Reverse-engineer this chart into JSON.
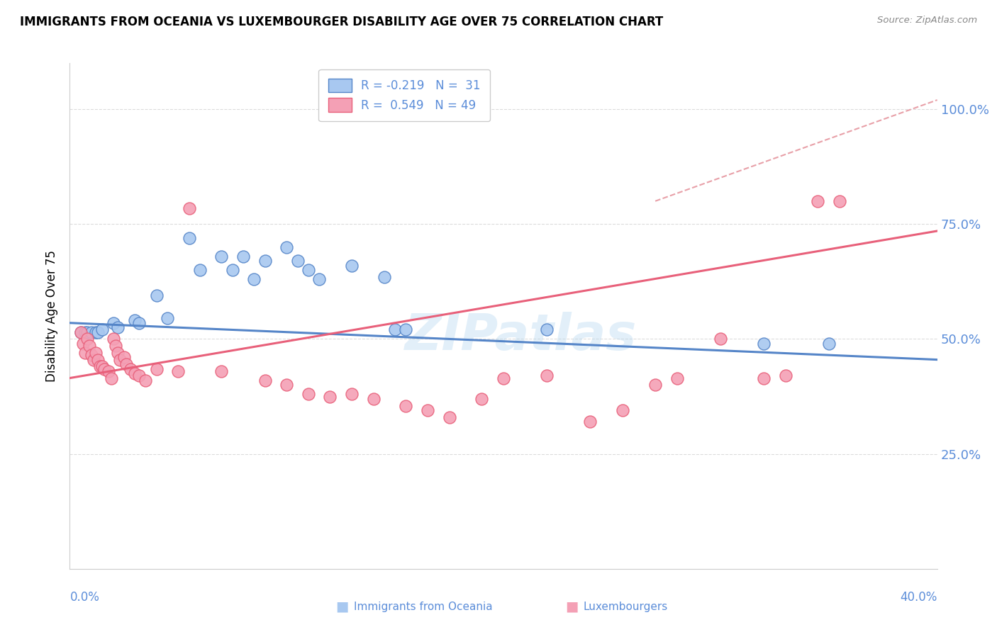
{
  "title": "IMMIGRANTS FROM OCEANIA VS LUXEMBOURGER DISABILITY AGE OVER 75 CORRELATION CHART",
  "source": "Source: ZipAtlas.com",
  "ylabel": "Disability Age Over 75",
  "xlim": [
    0.0,
    0.4
  ],
  "ylim": [
    0.0,
    1.1
  ],
  "legend_blue_r": "-0.219",
  "legend_blue_n": "31",
  "legend_pink_r": "0.549",
  "legend_pink_n": "49",
  "watermark": "ZIPatlas",
  "blue_color": "#A8C8F0",
  "pink_color": "#F4A0B5",
  "blue_line_color": "#5585C8",
  "pink_line_color": "#E8607A",
  "dashed_line_color": "#E8A0A8",
  "right_axis_color": "#5B8DD9",
  "blue_points": [
    [
      0.005,
      0.515
    ],
    [
      0.007,
      0.515
    ],
    [
      0.008,
      0.515
    ],
    [
      0.01,
      0.515
    ],
    [
      0.012,
      0.515
    ],
    [
      0.013,
      0.515
    ],
    [
      0.015,
      0.52
    ],
    [
      0.02,
      0.535
    ],
    [
      0.022,
      0.525
    ],
    [
      0.03,
      0.54
    ],
    [
      0.032,
      0.535
    ],
    [
      0.04,
      0.595
    ],
    [
      0.045,
      0.545
    ],
    [
      0.055,
      0.72
    ],
    [
      0.06,
      0.65
    ],
    [
      0.07,
      0.68
    ],
    [
      0.075,
      0.65
    ],
    [
      0.08,
      0.68
    ],
    [
      0.085,
      0.63
    ],
    [
      0.09,
      0.67
    ],
    [
      0.1,
      0.7
    ],
    [
      0.105,
      0.67
    ],
    [
      0.11,
      0.65
    ],
    [
      0.115,
      0.63
    ],
    [
      0.13,
      0.66
    ],
    [
      0.145,
      0.635
    ],
    [
      0.15,
      0.52
    ],
    [
      0.155,
      0.52
    ],
    [
      0.22,
      0.52
    ],
    [
      0.32,
      0.49
    ],
    [
      0.35,
      0.49
    ]
  ],
  "pink_points": [
    [
      0.005,
      0.515
    ],
    [
      0.006,
      0.49
    ],
    [
      0.007,
      0.47
    ],
    [
      0.008,
      0.5
    ],
    [
      0.009,
      0.485
    ],
    [
      0.01,
      0.465
    ],
    [
      0.011,
      0.455
    ],
    [
      0.012,
      0.47
    ],
    [
      0.013,
      0.455
    ],
    [
      0.014,
      0.44
    ],
    [
      0.015,
      0.44
    ],
    [
      0.016,
      0.435
    ],
    [
      0.018,
      0.43
    ],
    [
      0.019,
      0.415
    ],
    [
      0.02,
      0.5
    ],
    [
      0.021,
      0.485
    ],
    [
      0.022,
      0.47
    ],
    [
      0.023,
      0.455
    ],
    [
      0.025,
      0.46
    ],
    [
      0.026,
      0.445
    ],
    [
      0.028,
      0.435
    ],
    [
      0.03,
      0.425
    ],
    [
      0.032,
      0.42
    ],
    [
      0.035,
      0.41
    ],
    [
      0.04,
      0.435
    ],
    [
      0.05,
      0.43
    ],
    [
      0.055,
      0.785
    ],
    [
      0.07,
      0.43
    ],
    [
      0.09,
      0.41
    ],
    [
      0.1,
      0.4
    ],
    [
      0.11,
      0.38
    ],
    [
      0.12,
      0.375
    ],
    [
      0.13,
      0.38
    ],
    [
      0.14,
      0.37
    ],
    [
      0.155,
      0.355
    ],
    [
      0.165,
      0.345
    ],
    [
      0.175,
      0.33
    ],
    [
      0.19,
      0.37
    ],
    [
      0.2,
      0.415
    ],
    [
      0.22,
      0.42
    ],
    [
      0.24,
      0.32
    ],
    [
      0.255,
      0.345
    ],
    [
      0.27,
      0.4
    ],
    [
      0.28,
      0.415
    ],
    [
      0.3,
      0.5
    ],
    [
      0.32,
      0.415
    ],
    [
      0.33,
      0.42
    ],
    [
      0.345,
      0.8
    ],
    [
      0.355,
      0.8
    ]
  ],
  "blue_trend_x": [
    0.0,
    0.4
  ],
  "blue_trend_y": [
    0.535,
    0.455
  ],
  "pink_trend_x": [
    0.0,
    0.4
  ],
  "pink_trend_y": [
    0.415,
    0.735
  ],
  "dashed_line_x": [
    0.27,
    0.4
  ],
  "dashed_line_y": [
    0.8,
    1.02
  ],
  "yticks_vals": [
    0.25,
    0.5,
    0.75,
    1.0
  ],
  "xticks_vals": [
    0.0,
    0.1,
    0.2,
    0.3,
    0.4
  ],
  "grid_color": "#DCDCDC"
}
